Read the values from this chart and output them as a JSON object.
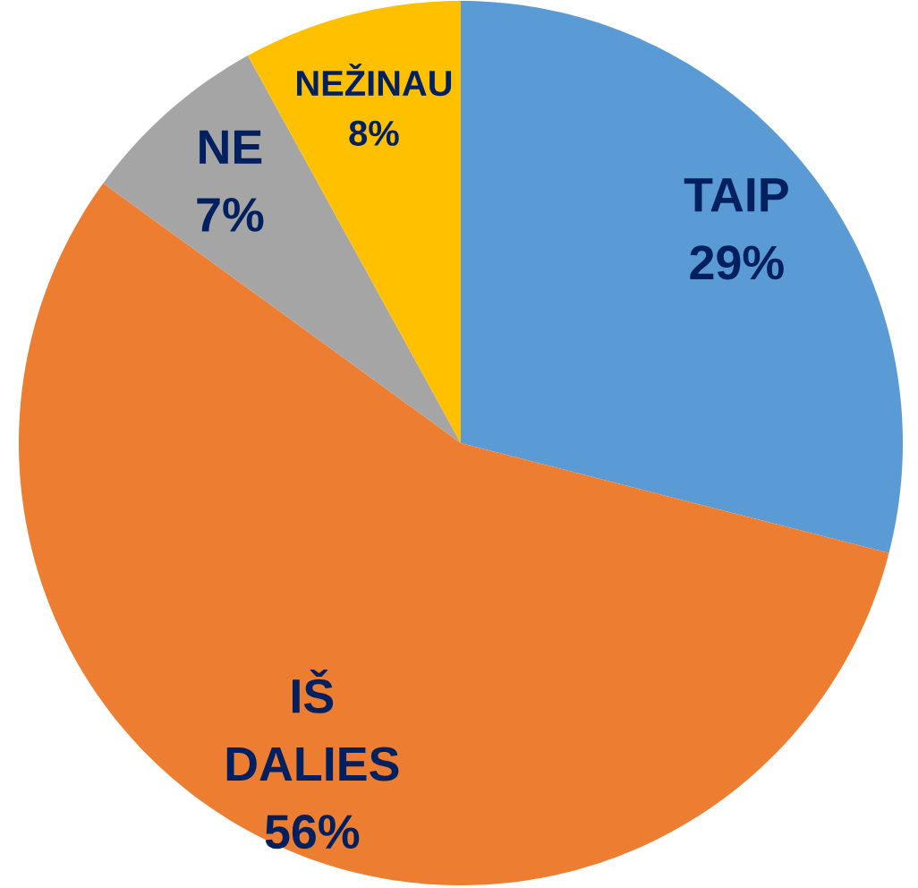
{
  "chart_data": {
    "type": "pie",
    "categories": [
      "TAIP",
      "IŠ DALIES",
      "NE",
      "NEŽINAU"
    ],
    "values": [
      29,
      56,
      7,
      8
    ],
    "value_labels": [
      "29%",
      "56%",
      "7%",
      "8%"
    ],
    "colors": [
      "#5b9bd5",
      "#ed7d31",
      "#a5a5a5",
      "#ffc000"
    ]
  }
}
